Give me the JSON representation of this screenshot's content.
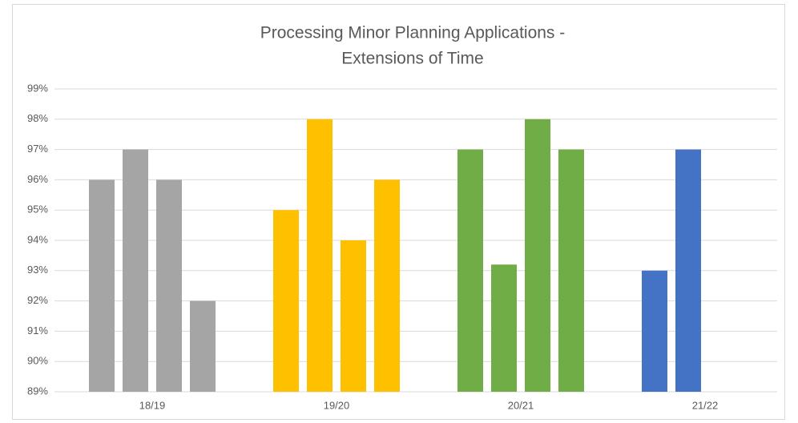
{
  "chart_data": {
    "type": "bar",
    "title": [
      "Processing Minor Planning Applications -",
      "Extensions of Time"
    ],
    "categories": [
      "18/19",
      "19/20",
      "20/21",
      "21/22"
    ],
    "colors": [
      "#a5a5a5",
      "#ffc000",
      "#70ad47",
      "#4472c4"
    ],
    "series": [
      {
        "values": [
          96,
          95,
          97,
          93
        ]
      },
      {
        "values": [
          97,
          98,
          93.2,
          97
        ]
      },
      {
        "values": [
          96,
          94,
          98,
          null
        ]
      },
      {
        "values": [
          92,
          96,
          97,
          null
        ]
      }
    ],
    "ylim": [
      89,
      99
    ],
    "yticks": [
      {
        "value": 89,
        "label": "89%"
      },
      {
        "value": 90,
        "label": "90%"
      },
      {
        "value": 91,
        "label": "91%"
      },
      {
        "value": 92,
        "label": "92%"
      },
      {
        "value": 93,
        "label": "93%"
      },
      {
        "value": 94,
        "label": "94%"
      },
      {
        "value": 95,
        "label": "95%"
      },
      {
        "value": 96,
        "label": "96%"
      },
      {
        "value": 97,
        "label": "97%"
      },
      {
        "value": 98,
        "label": "98%"
      },
      {
        "value": 99,
        "label": "99%"
      }
    ],
    "grid": true
  }
}
